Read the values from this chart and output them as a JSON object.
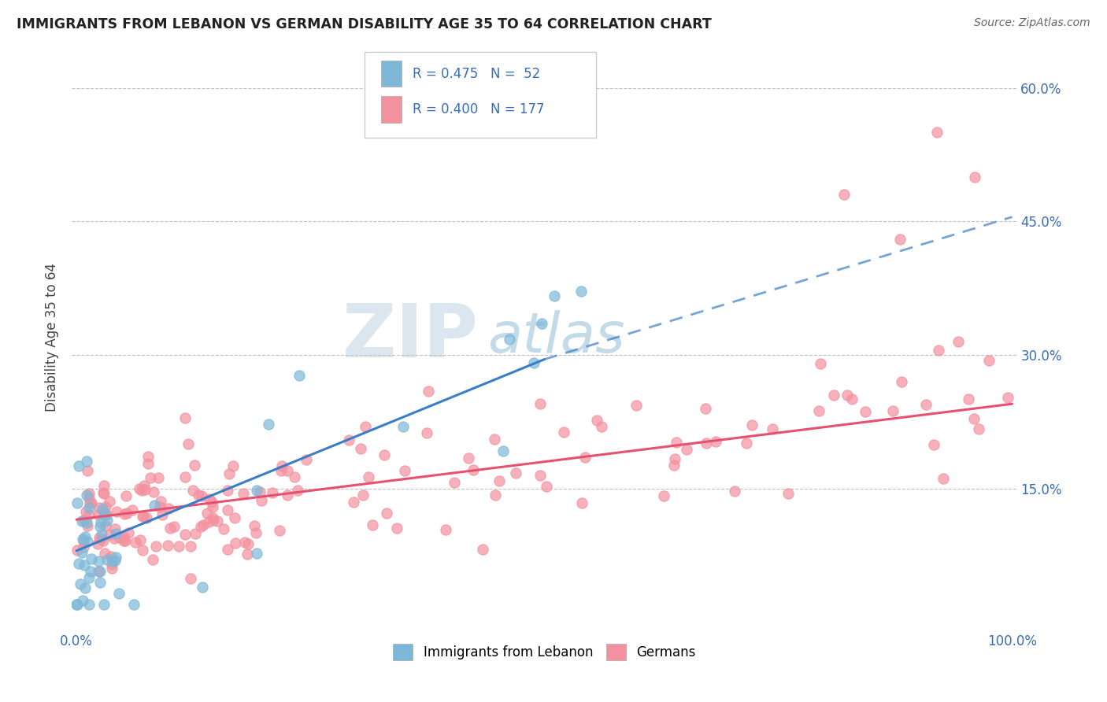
{
  "title": "IMMIGRANTS FROM LEBANON VS GERMAN DISABILITY AGE 35 TO 64 CORRELATION CHART",
  "source": "Source: ZipAtlas.com",
  "ylabel": "Disability Age 35 to 64",
  "watermark_zip": "ZIP",
  "watermark_atlas": "atlas",
  "lebanon_color": "#7eb8d9",
  "german_color": "#f4919e",
  "lebanon_line_color": "#3a7ec8",
  "german_line_color": "#e85070",
  "background_color": "#ffffff",
  "grid_color": "#bbbbbb",
  "xlim": [
    -0.005,
    1.005
  ],
  "ylim": [
    -0.01,
    0.65
  ],
  "x_ticks": [
    0.0,
    1.0
  ],
  "x_tick_labels": [
    "0.0%",
    "100.0%"
  ],
  "y_ticks": [
    0.15,
    0.3,
    0.45,
    0.6
  ],
  "y_tick_labels": [
    "15.0%",
    "30.0%",
    "45.0%",
    "60.0%"
  ],
  "legend_r1": "R = 0.475",
  "legend_n1": "N =  52",
  "legend_r2": "R = 0.400",
  "legend_n2": "N = 177",
  "leb_trend_x0": 0.0,
  "leb_trend_y0": 0.08,
  "leb_trend_x1": 0.5,
  "leb_trend_y1": 0.295,
  "leb_trend_dash_x0": 0.5,
  "leb_trend_dash_y0": 0.295,
  "leb_trend_dash_x1": 1.0,
  "leb_trend_dash_y1": 0.455,
  "ger_trend_x0": 0.0,
  "ger_trend_y0": 0.115,
  "ger_trend_x1": 1.0,
  "ger_trend_y1": 0.245,
  "figsize": [
    14.06,
    8.92
  ],
  "dpi": 100
}
